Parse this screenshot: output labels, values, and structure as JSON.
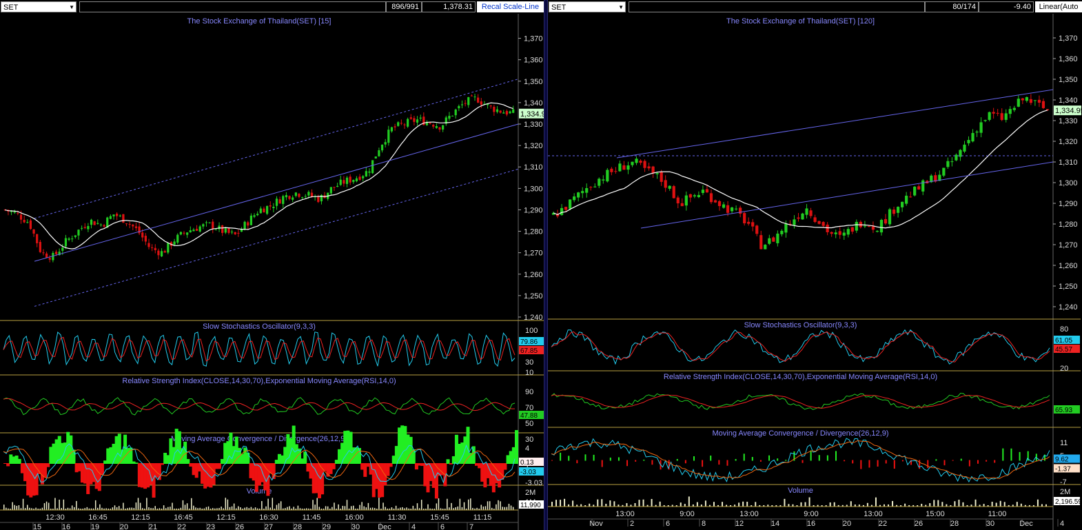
{
  "left": {
    "symbol": "SET",
    "count": "896/991",
    "value": "1,378.31",
    "button": "Recal Scale-Line",
    "title": "The Stock Exchange of Thailand(SET) [15]",
    "price_ticks": [
      "1,370",
      "1,360",
      "1,350",
      "1,340",
      "1,330",
      "1,320",
      "1,310",
      "1,300",
      "1,290",
      "1,280",
      "1,270",
      "1,260",
      "1,250",
      "1,240"
    ],
    "last_price": "1,334.9",
    "stoch": {
      "title": "Slow Stochastics Oscillator(9,3,3)",
      "ticks": [
        "100",
        "80",
        "50",
        "30",
        "10"
      ],
      "v1": "79.86",
      "v2": "67.85"
    },
    "rsi": {
      "title": "Relative Strength Index(CLOSE,14,30,70),Exponential Moving Average(RSI,14,0)",
      "ticks": [
        "90",
        "70",
        "50",
        "30"
      ],
      "v1": "47.88"
    },
    "macd": {
      "title": "Moving Average Convergence / Divergence(26,12,9)",
      "ticks": [
        "4",
        "1",
        "-3.03"
      ],
      "v1": "0.13",
      "v2": "-3.03"
    },
    "volume": {
      "title": "Volume",
      "ticks": [
        "2M",
        "1M"
      ],
      "v1": "11,990"
    },
    "time_labels": [
      "12:30",
      "16:45",
      "12:15",
      "16:45",
      "12:15",
      "16:30",
      "11:45",
      "16:00",
      "11:30",
      "15:45",
      "11:15"
    ],
    "date_labels": [
      "15",
      "16",
      "19",
      "20",
      "21",
      "22",
      "23",
      "26",
      "27",
      "28",
      "29",
      "30",
      "Dec",
      "4",
      "6",
      "7"
    ]
  },
  "right": {
    "symbol": "SET",
    "count": "80/174",
    "value": "-9.40",
    "button": "Linear(Auto",
    "title": "The Stock Exchange of Thailand(SET) [120]",
    "price_ticks": [
      "1,370",
      "1,360",
      "1,350",
      "1,340",
      "1,330",
      "1,320",
      "1,310",
      "1,300",
      "1,290",
      "1,280",
      "1,270",
      "1,260",
      "1,250",
      "1,240"
    ],
    "last_price": "1,334.95",
    "stoch": {
      "title": "Slow Stochastics Oscillator(9,3,3)",
      "ticks": [
        "80",
        "50",
        "20"
      ],
      "v1": "61.05",
      "v2": "45.57"
    },
    "rsi": {
      "title": "Relative Strength Index(CLOSE,14,30,70),Exponential Moving Average(RSI,14,0)",
      "ticks": [],
      "v1": "65.93"
    },
    "macd": {
      "title": "Moving Average Convergence / Divergence(26,12,9)",
      "ticks": [
        "11",
        "5",
        "1",
        "-7"
      ],
      "v1": "9.62",
      "v2": "-1.37"
    },
    "volume": {
      "title": "Volume",
      "ticks": [
        "2M",
        "1M"
      ],
      "v1": "2,196.59"
    },
    "time_labels": [
      "13:00",
      "9:00",
      "13:00",
      "9:00",
      "13:00",
      "15:00",
      "11:00"
    ],
    "date_labels": [
      "Nov",
      "2",
      "6",
      "8",
      "12",
      "14",
      "16",
      "20",
      "22",
      "26",
      "28",
      "30",
      "Dec",
      "4"
    ]
  },
  "colors": {
    "up": "#22cc22",
    "down": "#dd1111",
    "sma": "#ffffff",
    "channel": "#6666ee",
    "frame": "#b8a040",
    "stoch_k": "#22ccee",
    "stoch_d": "#ee2222",
    "rsi": "#22cc22",
    "rsi_ema": "#ee2222"
  },
  "chart_data": [
    {
      "type": "line",
      "title": "The Stock Exchange of Thailand(SET) [15]",
      "ylim": [
        1240,
        1375
      ],
      "series": [
        {
          "values": [
            1290,
            1288,
            1284,
            1270,
            1268,
            1275,
            1280,
            1285,
            1283,
            1288,
            1285,
            1280,
            1272,
            1270,
            1276,
            1280,
            1282,
            1283,
            1280,
            1278,
            1284,
            1290,
            1292,
            1296,
            1298,
            1297,
            1295,
            1300,
            1303,
            1305,
            1308,
            1320,
            1328,
            1330,
            1332,
            1331,
            1329,
            1335,
            1340,
            1342,
            1338,
            1336,
            1335
          ]
        }
      ]
    },
    {
      "type": "line",
      "title": "The Stock Exchange of Thailand(SET) [120]",
      "ylim": [
        1235,
        1375
      ],
      "series": [
        {
          "values": [
            1284,
            1288,
            1293,
            1298,
            1302,
            1305,
            1308,
            1310,
            1306,
            1303,
            1298,
            1290,
            1293,
            1296,
            1292,
            1288,
            1285,
            1280,
            1270,
            1272,
            1278,
            1283,
            1288,
            1282,
            1276,
            1273,
            1278,
            1282,
            1278,
            1283,
            1290,
            1294,
            1298,
            1302,
            1306,
            1312,
            1320,
            1328,
            1333,
            1331,
            1336,
            1341,
            1338,
            1335
          ]
        }
      ]
    }
  ]
}
